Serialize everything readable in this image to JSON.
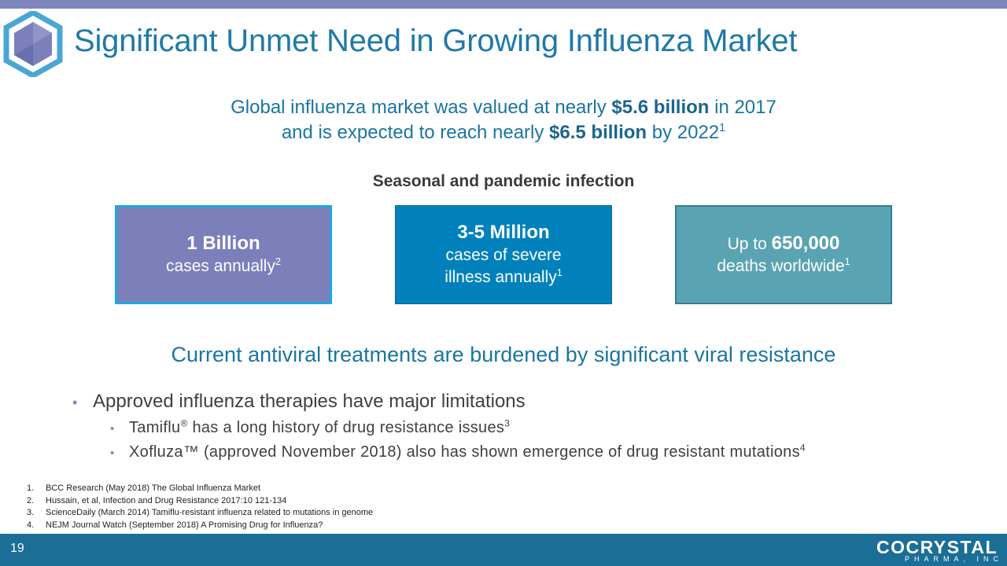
{
  "header": {
    "title": "Significant Unmet Need in Growing Influenza Market"
  },
  "market": {
    "line1_pre": "Global influenza market was valued at nearly ",
    "line1_bold": "$5.6 billion",
    "line1_post": " in 2017",
    "line2_pre": "and is expected to reach nearly ",
    "line2_bold": "$6.5 billion",
    "line2_post": " by 2022",
    "line2_sup": "1"
  },
  "seasonal_heading": "Seasonal and pandemic infection",
  "stats": [
    {
      "big": "1 Billion",
      "text": "cases annually",
      "sup": "2"
    },
    {
      "big": "3-5 Million",
      "text1": "cases of severe",
      "text2": "illness annually",
      "sup": "1"
    },
    {
      "pre": "Up to ",
      "big": "650,000",
      "text": "deaths worldwide",
      "sup": "1"
    }
  ],
  "burden_heading": "Current antiviral treatments are burdened by significant viral resistance",
  "bullets": {
    "main": "Approved influenza therapies have major limitations",
    "sub1_pre": "Tamiflu",
    "sub1_reg": "®",
    "sub1_post": " has a long history of drug resistance issues",
    "sub1_sup": "3",
    "sub2": "Xofluza™ (approved November 2018) also has shown emergence of drug resistant mutations",
    "sub2_sup": "4"
  },
  "references": [
    {
      "num": "1.",
      "text": "BCC Research (May 2018) The Global Influenza Market"
    },
    {
      "num": "2.",
      "text": "Hussain, et al, Infection and Drug Resistance 2017:10 121-134"
    },
    {
      "num": "3.",
      "text": "ScienceDaily (March 2014) Tamiflu-resistant  influenza related to mutations in genome"
    },
    {
      "num": "4.",
      "text": "NEJM Journal Watch (September 2018) A Promising Drug for Influenza?"
    }
  ],
  "footer": {
    "page_number": "19",
    "brand": "COCRYSTAL",
    "brand_sub": "PHARMA, INC"
  },
  "colors": {
    "accent": "#1a75a3",
    "top_bar": "#7f86bd",
    "footer": "#1b6e96",
    "box1": "#7b80bb",
    "box2": "#0081bb",
    "box3": "#5aa3b2"
  },
  "icons": {
    "logo": "hexagon-logo-icon",
    "bullet": "bullet-dot-icon"
  }
}
